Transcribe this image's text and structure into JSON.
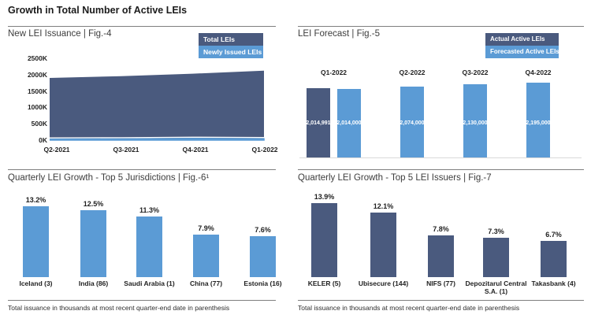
{
  "header": {
    "title": "Growth in Total Number of Active LEIs"
  },
  "colors": {
    "dark": "#4a5a7e",
    "light": "#5b9bd5"
  },
  "chart_data": [
    {
      "id": "fig4",
      "type": "area",
      "title": "New LEI Issuance | Fig.-4",
      "x": [
        "Q2-2021",
        "Q3-2021",
        "Q4-2021",
        "Q1-2022"
      ],
      "series": [
        {
          "name": "Total LEIs",
          "color": "#4a5a7e",
          "values": [
            1900000,
            1955000,
            2030000,
            2120000
          ]
        },
        {
          "name": "Newly Issued LEIs",
          "color": "#5b9bd5",
          "values": [
            30000,
            35000,
            50000,
            40000
          ]
        }
      ],
      "y_ticks": [
        "2500K",
        "2000K",
        "1500K",
        "1000K",
        "500K",
        "0K"
      ],
      "ylim": [
        0,
        2500000
      ],
      "legend_position": "top-right",
      "grid": false
    },
    {
      "id": "fig5",
      "type": "bar",
      "title": "LEI Forecast | Fig.-5",
      "categories": [
        "Q1-2022",
        "Q2-2022",
        "Q3-2022",
        "Q4-2022"
      ],
      "series": [
        {
          "name": "Actual Active LEIs",
          "color": "#4a5a7e",
          "values": [
            2014991,
            null,
            null,
            null
          ],
          "data_labels": [
            "2,014,991",
            null,
            null,
            null
          ]
        },
        {
          "name": "Forecasted Active LEIs",
          "color": "#5b9bd5",
          "values": [
            2014000,
            2074000,
            2130000,
            2195000
          ],
          "data_labels": [
            "2,014,000",
            "2,074,000",
            "2,130,000",
            "2,195,000"
          ]
        }
      ],
      "ylim": [
        0,
        2400000
      ],
      "category_labels_position": "above",
      "legend_position": "top-right",
      "grid": false
    },
    {
      "id": "fig6",
      "type": "bar",
      "title": "Quarterly LEI Growth - Top 5 Jurisdictions | Fig.-6¹",
      "categories": [
        "Iceland (3)",
        "India (86)",
        "Saudi Arabia (1)",
        "China (77)",
        "Estonia (16)"
      ],
      "values": [
        13.2,
        12.5,
        11.3,
        7.9,
        7.6
      ],
      "data_labels": [
        "13.2%",
        "12.5%",
        "11.3%",
        "7.9%",
        "7.6%"
      ],
      "bar_color": "#5b9bd5",
      "ylim": [
        0,
        15
      ],
      "grid": false,
      "footnote": "Total issuance in thousands at most recent quarter-end date in parenthesis"
    },
    {
      "id": "fig7",
      "type": "bar",
      "title": "Quarterly LEI Growth - Top 5 LEI Issuers | Fig.-7",
      "categories": [
        "KELER (5)",
        "Ubisecure (144)",
        "NIFS (77)",
        "Depozitarul Central S.A. (1)",
        "Takasbank (4)"
      ],
      "values": [
        13.9,
        12.1,
        7.8,
        7.3,
        6.7
      ],
      "data_labels": [
        "13.9%",
        "12.1%",
        "7.8%",
        "7.3%",
        "6.7%"
      ],
      "bar_color": "#4a5a7e",
      "ylim": [
        0,
        15
      ],
      "grid": false,
      "footnote": "Total issuance in thousands at most recent quarter-end date in parenthesis"
    }
  ]
}
